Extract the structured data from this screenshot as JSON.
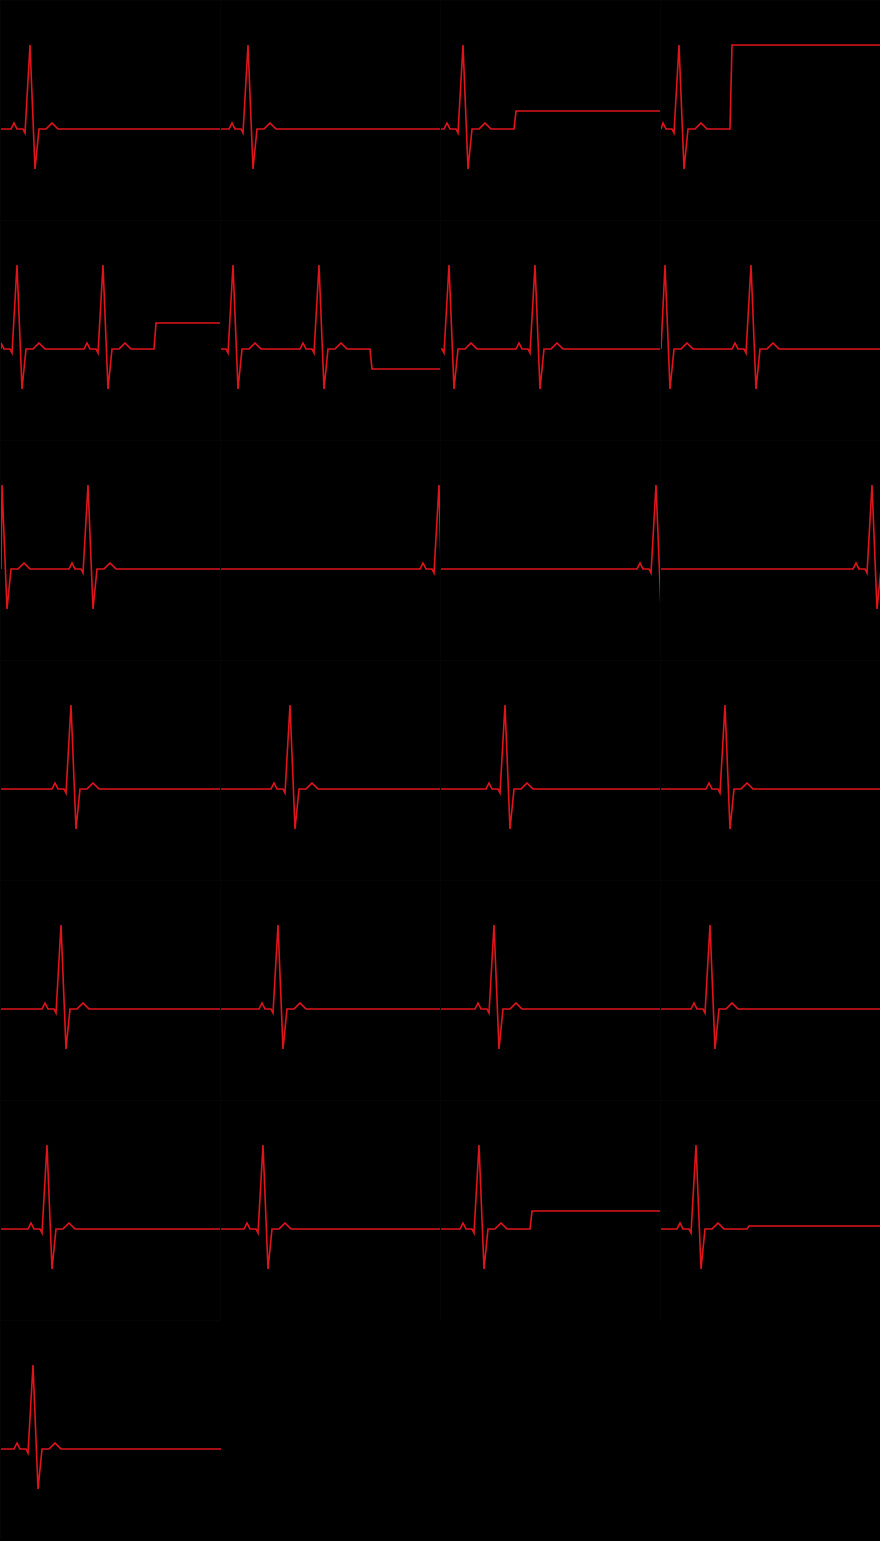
{
  "trace_color": "#e0141b",
  "background_color": "#000000",
  "frames": [
    {
      "qrs": 30,
      "end_level": 128
    },
    {
      "qrs": 248,
      "end_level": 128
    },
    {
      "qrs": 463,
      "end_level": 110
    },
    {
      "qrs": 679,
      "end_level": 44
    },
    {
      "qrs": 17,
      "end_level": 322
    },
    {
      "qrs": 233,
      "end_level": 368
    },
    {
      "qrs": 449,
      "end_level": 348
    },
    {
      "qrs": 665,
      "end_level": 348
    },
    {
      "qrs": 2,
      "end_level": 568
    },
    {
      "qrs": 219,
      "end_level": 563
    },
    {
      "qrs": 436,
      "end_level": 560
    },
    {
      "qrs": 652,
      "end_level": 562
    },
    {
      "qrs": 71,
      "end_level": 788
    },
    {
      "qrs": 290,
      "end_level": 788
    },
    {
      "qrs": 505,
      "end_level": 788
    },
    {
      "qrs": 725,
      "end_level": 788
    },
    {
      "qrs": 61,
      "end_level": 1008
    },
    {
      "qrs": 278,
      "end_level": 1008
    },
    {
      "qrs": 494,
      "end_level": 1008
    },
    {
      "qrs": 710,
      "end_level": 1008
    },
    {
      "qrs": 47,
      "end_level": 1228
    },
    {
      "qrs": 263,
      "end_level": 1228
    },
    {
      "qrs": 479,
      "end_level": 1210
    },
    {
      "qrs": 696,
      "end_level": 1225
    },
    {
      "qrs": 33,
      "end_level": 1448
    }
  ]
}
